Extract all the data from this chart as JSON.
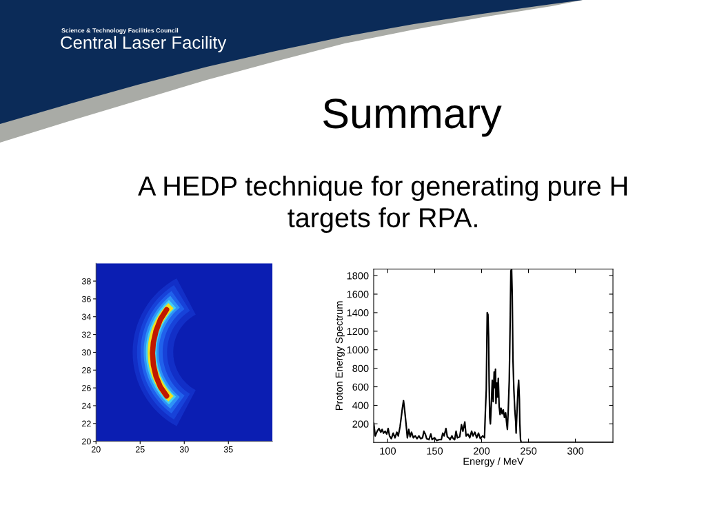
{
  "chart_data": [
    {
      "type": "other",
      "title": "Summary",
      "subtitle": "A HEDP technique for generating pure H targets for RPA.",
      "annotations": [
        "Science & Technology Facilities Council",
        "Central Laser Facility"
      ]
    },
    {
      "type": "line",
      "color": "#c01800",
      "xlim": [
        20,
        40
      ],
      "xticks": [
        20,
        25,
        30,
        35
      ],
      "ylim": [
        20,
        40
      ],
      "yticks": [
        20,
        22,
        24,
        26,
        28,
        30,
        32,
        34,
        36,
        38
      ],
      "x": [
        28.0,
        27.3,
        26.8,
        26.5,
        26.4,
        26.5,
        26.8,
        27.3,
        28.0
      ],
      "values": [
        34.8,
        33.7,
        32.4,
        31.1,
        29.9,
        28.6,
        27.3,
        26.1,
        25.1
      ]
    },
    {
      "type": "line",
      "xlabel": "Energy / MeV",
      "ylabel": "Proton Energy Spectrum",
      "color": "#000000",
      "xlim": [
        85,
        340
      ],
      "xticks": [
        100,
        150,
        200,
        250,
        300
      ],
      "ylim": [
        0,
        1870
      ],
      "yticks": [
        200,
        400,
        600,
        800,
        1000,
        1200,
        1400,
        1600,
        1800
      ],
      "x": [
        85.0,
        86.7,
        88.7,
        90.6,
        92.6,
        94.0,
        95.5,
        97.2,
        98.9,
        100.4,
        101.9,
        103.8,
        105.8,
        107.7,
        109.7,
        111.2,
        113.1,
        115.6,
        116.8,
        118.0,
        119.5,
        120.9,
        122.4,
        123.9,
        125.3,
        127.3,
        129.3,
        131.2,
        133.2,
        135.1,
        137.1,
        138.5,
        140.0,
        141.5,
        143.9,
        145.9,
        147.3,
        149.8,
        152.2,
        154.7,
        157.1,
        158.6,
        160.1,
        162.0,
        163.5,
        165.0,
        166.4,
        168.4,
        169.8,
        171.3,
        172.8,
        174.2,
        176.7,
        178.6,
        180.1,
        182.1,
        183.5,
        185.5,
        187.4,
        189.4,
        190.9,
        192.8,
        194.8,
        196.7,
        198.7,
        201.1,
        203.1,
        204.1,
        205.0,
        206.0,
        206.8,
        207.5,
        208.0,
        208.7,
        209.4,
        210.4,
        211.4,
        212.4,
        213.4,
        214.3,
        214.8,
        215.3,
        216.3,
        217.0,
        217.8,
        218.7,
        219.7,
        220.7,
        221.9,
        223.1,
        224.4,
        225.6,
        226.8,
        227.5,
        228.5,
        229.5,
        230.5,
        231.2,
        232.0,
        232.7,
        233.4,
        234.4,
        235.4,
        236.4,
        236.8,
        237.8,
        238.8,
        239.5,
        240.3,
        240.7,
        241.5,
        242.2,
        340.0
      ],
      "values": [
        210,
        70,
        120,
        150,
        110,
        140,
        100,
        120,
        90,
        150,
        70,
        40,
        100,
        50,
        110,
        70,
        170,
        370,
        450,
        350,
        200,
        50,
        140,
        60,
        110,
        50,
        70,
        40,
        70,
        40,
        50,
        120,
        90,
        40,
        30,
        90,
        30,
        50,
        20,
        30,
        30,
        100,
        70,
        150,
        60,
        50,
        30,
        70,
        40,
        30,
        120,
        50,
        60,
        190,
        120,
        220,
        70,
        90,
        50,
        120,
        70,
        110,
        50,
        100,
        40,
        70,
        50,
        350,
        570,
        1400,
        1380,
        1130,
        670,
        270,
        200,
        420,
        670,
        440,
        760,
        590,
        790,
        420,
        640,
        490,
        690,
        390,
        300,
        370,
        310,
        350,
        270,
        320,
        200,
        140,
        370,
        670,
        1330,
        1850,
        1870,
        1580,
        910,
        570,
        350,
        220,
        100,
        350,
        570,
        670,
        470,
        220,
        30,
        0,
        0
      ]
    }
  ]
}
